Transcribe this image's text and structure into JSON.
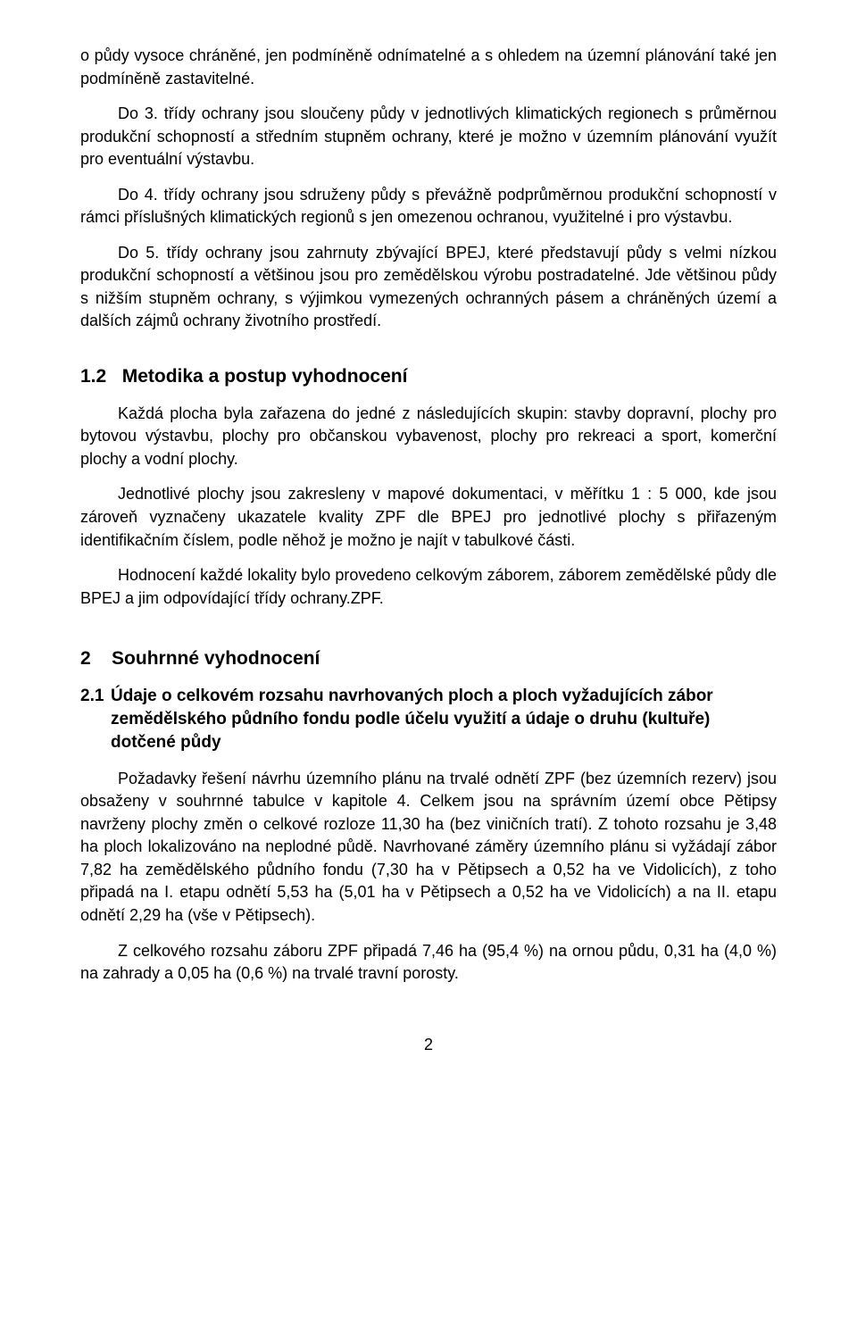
{
  "para1": "o půdy vysoce chráněné, jen podmíněně odnímatelné a s ohledem na územní plánování také jen podmíněně zastavitelné.",
  "para2": "Do 3. třídy ochrany jsou sloučeny půdy v jednotlivých klimatických regionech s průměrnou produkční schopností a středním stupněm ochrany, které je možno v územním plánování využít pro eventuální výstavbu.",
  "para3": "Do 4. třídy ochrany jsou sdruženy půdy s převážně podprůměrnou produkční schopností v rámci příslušných klimatických regionů s jen omezenou ochranou, využitelné i pro výstavbu.",
  "para4": "Do 5. třídy ochrany jsou zahrnuty zbývající BPEJ, které představují půdy s velmi nízkou produkční schopností a většinou jsou pro zemědělskou výrobu postradatelné. Jde většinou půdy s nižším stupněm ochrany, s výjimkou vymezených ochranných pásem a chráněných území a dalších zájmů ochrany životního prostředí.",
  "h12_num": "1.2",
  "h12_title": "Metodika a postup vyhodnocení",
  "para5": "Každá plocha byla zařazena do jedné z následujících skupin: stavby dopravní, plochy pro bytovou výstavbu, plochy pro občanskou vybavenost, plochy pro rekreaci a sport, komerční plochy a vodní plochy.",
  "para6": "Jednotlivé plochy jsou zakresleny v mapové dokumentaci, v měřítku 1 : 5 000, kde jsou zároveň vyznačeny ukazatele kvality ZPF dle BPEJ pro jednotlivé plochy s přiřazeným identifikačním číslem, podle něhož je možno je najít v tabulkové části.",
  "para7": "Hodnocení každé lokality bylo provedeno celkovým záborem, záborem zemědělské půdy dle BPEJ a jim odpovídající třídy ochrany.ZPF.",
  "h2_num": "2",
  "h2_title": "Souhrnné vyhodnocení",
  "h21_num": "2.1",
  "h21_title": "Údaje o celkovém rozsahu navrhovaných ploch a ploch vyžadujících zábor zemědělského půdního fondu podle účelu využití a údaje o druhu (kultuře) dotčené půdy",
  "para8": "Požadavky řešení návrhu územního plánu na trvalé odnětí ZPF (bez územních rezerv) jsou obsaženy v souhrnné tabulce v kapitole 4. Celkem jsou na správním území obce Pětipsy navrženy plochy změn o celkové rozloze 11,30 ha (bez viničních tratí). Z tohoto rozsahu je 3,48 ha ploch lokalizováno na neplodné půdě. Navrhované záměry územního plánu si vyžádají zábor 7,82 ha zemědělského půdního fondu (7,30 ha v Pětipsech a 0,52 ha ve Vidolicích), z toho připadá na I. etapu odnětí 5,53 ha (5,01 ha v Pětipsech a 0,52 ha ve Vidolicích) a na II. etapu odnětí 2,29 ha (vše v Pětipsech).",
  "para9": "Z celkového rozsahu záboru ZPF připadá 7,46 ha (95,4 %) na ornou půdu, 0,31 ha (4,0 %) na zahrady a 0,05 ha (0,6 %) na trvalé travní porosty.",
  "page_number": "2"
}
